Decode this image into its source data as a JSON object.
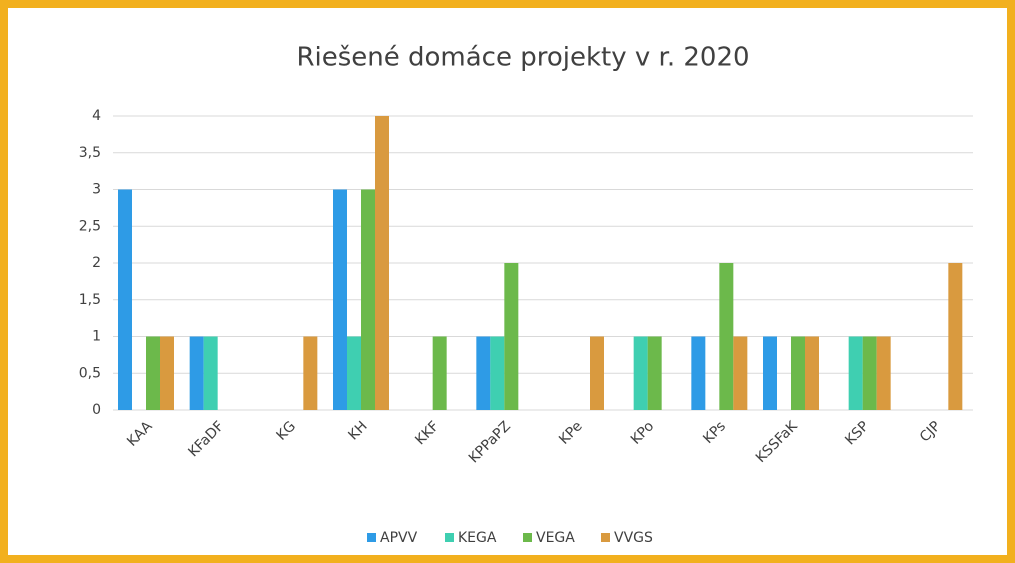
{
  "chart_data": {
    "type": "bar",
    "title": "Riešené domáce projekty v r. 2020",
    "categories": [
      "KAA",
      "KFaDF",
      "KG",
      "KH",
      "KKF",
      "KPPaPZ",
      "KPe",
      "KPo",
      "KPs",
      "KSSFaK",
      "KSP",
      "CJP"
    ],
    "series": [
      {
        "name": "APVV",
        "color": "#2e9be6",
        "values": [
          3,
          1,
          0,
          3,
          0,
          1,
          0,
          0,
          1,
          1,
          0,
          0
        ]
      },
      {
        "name": "KEGA",
        "color": "#3fcfb1",
        "values": [
          0,
          1,
          0,
          1,
          0,
          1,
          0,
          1,
          0,
          0,
          1,
          0
        ]
      },
      {
        "name": "VEGA",
        "color": "#6cb94b",
        "values": [
          1,
          0,
          0,
          3,
          1,
          2,
          0,
          1,
          2,
          1,
          1,
          0
        ]
      },
      {
        "name": "VVGS",
        "color": "#d99a3f",
        "values": [
          1,
          0,
          1,
          4,
          0,
          0,
          1,
          0,
          1,
          1,
          1,
          2
        ]
      }
    ],
    "ylim": [
      0,
      4
    ],
    "yticks": [
      0,
      {
        "value": 0.5,
        "label": "0,5"
      },
      1,
      {
        "value": 1.5,
        "label": "1,5"
      },
      2,
      {
        "value": 2.5,
        "label": "2,5"
      },
      3,
      {
        "value": 3.5,
        "label": "3,5"
      },
      4
    ],
    "grid": true,
    "legend": "bottom"
  }
}
